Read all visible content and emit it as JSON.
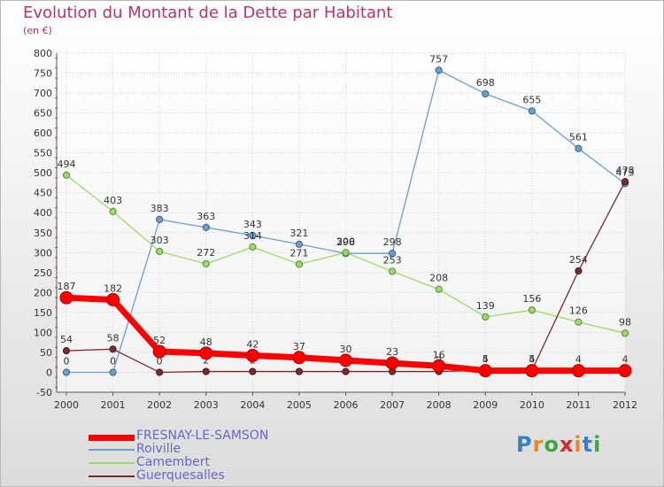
{
  "title": "Evolution du Montant de la Dette par Habitant",
  "subtitle": "(en €)",
  "logo": {
    "letters": [
      "P",
      "r",
      "o",
      "x",
      "i",
      "t",
      "i"
    ],
    "colors": [
      "#3a7fc4",
      "#e98a25",
      "#3fa73f",
      "#d7282f",
      "#e98a25",
      "#3a7fc4",
      "#3fa73f"
    ]
  },
  "chart_data": {
    "type": "line",
    "title": "Evolution du Montant de la Dette par Habitant",
    "subtitle": "(en €)",
    "xlabel": "",
    "ylabel": "",
    "ylim": [
      -50,
      800
    ],
    "yticks": [
      -50,
      0,
      50,
      100,
      150,
      200,
      250,
      300,
      350,
      400,
      450,
      500,
      550,
      600,
      650,
      700,
      750,
      800
    ],
    "x": [
      "2000",
      "2001",
      "2002",
      "2003",
      "2004",
      "2005",
      "2006",
      "2007",
      "2008",
      "2009",
      "2010",
      "2011",
      "2012"
    ],
    "grid": true,
    "legend_position": "bottom-left",
    "series": [
      {
        "name": "FRESNAY-LE-SAMSON",
        "color": "#ff0000",
        "values": [
          187,
          182,
          52,
          48,
          42,
          37,
          30,
          23,
          16,
          4,
          4,
          4,
          4
        ]
      },
      {
        "name": "Roiville",
        "color": "#6a9fcf",
        "values": [
          0,
          0,
          383,
          363,
          343,
          321,
          298,
          298,
          757,
          698,
          655,
          561,
          473
        ]
      },
      {
        "name": "Camembert",
        "color": "#99dd66",
        "values": [
          494,
          403,
          303,
          272,
          314,
          271,
          300,
          253,
          208,
          139,
          156,
          126,
          98
        ]
      },
      {
        "name": "Guerquesalles",
        "color": "#7b2b2b",
        "values": [
          54,
          58,
          0,
          2,
          2,
          2,
          2,
          2,
          2,
          5,
          5,
          254,
          478
        ]
      }
    ]
  }
}
